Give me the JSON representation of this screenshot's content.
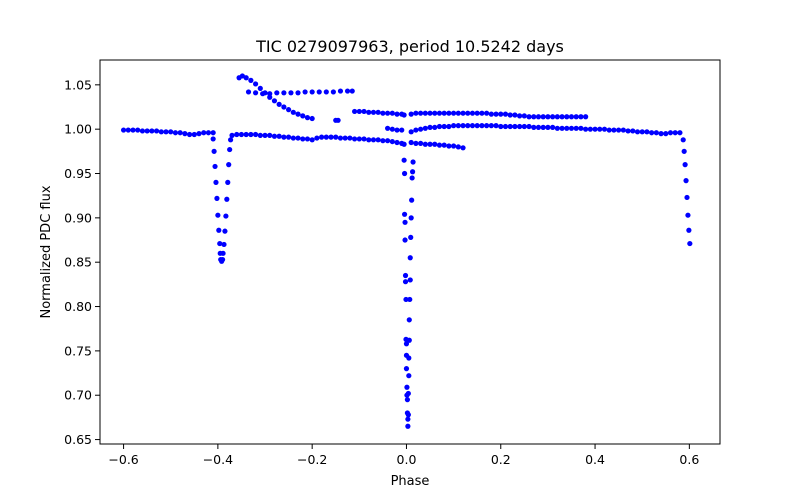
{
  "chart_data": {
    "type": "scatter",
    "title": "TIC 0279097963, period 10.5242 days",
    "xlabel": "Phase",
    "ylabel": "Normalized PDC flux",
    "xlim": [
      -0.65,
      0.665
    ],
    "ylim": [
      0.645,
      1.078
    ],
    "xticks": [
      -0.6,
      -0.4,
      -0.2,
      0.0,
      0.2,
      0.4,
      0.6
    ],
    "xtick_labels": [
      "−0.6",
      "−0.4",
      "−0.2",
      "0.0",
      "0.2",
      "0.4",
      "0.6"
    ],
    "yticks": [
      0.65,
      0.7,
      0.75,
      0.8,
      0.85,
      0.9,
      0.95,
      1.0,
      1.05
    ],
    "ytick_labels": [
      "0.65",
      "0.70",
      "0.75",
      "0.80",
      "0.85",
      "0.90",
      "0.95",
      "1.00",
      "1.05"
    ],
    "grid": false,
    "marker_color": "#0000ff",
    "series": [
      {
        "name": "main baseline left",
        "points": [
          [
            -0.6,
            0.999
          ],
          [
            -0.59,
            0.999
          ],
          [
            -0.58,
            0.999
          ],
          [
            -0.57,
            0.999
          ],
          [
            -0.56,
            0.998
          ],
          [
            -0.55,
            0.998
          ],
          [
            -0.54,
            0.998
          ],
          [
            -0.53,
            0.998
          ],
          [
            -0.52,
            0.997
          ],
          [
            -0.51,
            0.997
          ],
          [
            -0.5,
            0.997
          ],
          [
            -0.49,
            0.996
          ],
          [
            -0.48,
            0.996
          ],
          [
            -0.47,
            0.995
          ],
          [
            -0.46,
            0.994
          ],
          [
            -0.45,
            0.994
          ],
          [
            -0.44,
            0.995
          ],
          [
            -0.43,
            0.996
          ],
          [
            -0.42,
            0.996
          ],
          [
            -0.41,
            0.996
          ]
        ]
      },
      {
        "name": "primary eclipse ingress/egress (phase -0.4)",
        "points": [
          [
            -0.41,
            0.989
          ],
          [
            -0.408,
            0.975
          ],
          [
            -0.406,
            0.958
          ],
          [
            -0.404,
            0.94
          ],
          [
            -0.402,
            0.922
          ],
          [
            -0.4,
            0.903
          ],
          [
            -0.398,
            0.886
          ],
          [
            -0.396,
            0.871
          ],
          [
            -0.395,
            0.86
          ],
          [
            -0.394,
            0.853
          ],
          [
            -0.392,
            0.851
          ],
          [
            -0.39,
            0.853
          ],
          [
            -0.389,
            0.86
          ],
          [
            -0.387,
            0.87
          ],
          [
            -0.385,
            0.885
          ],
          [
            -0.383,
            0.902
          ],
          [
            -0.381,
            0.921
          ],
          [
            -0.379,
            0.94
          ],
          [
            -0.377,
            0.96
          ],
          [
            -0.375,
            0.977
          ],
          [
            -0.373,
            0.988
          ]
        ]
      },
      {
        "name": "main baseline middle",
        "points": [
          [
            -0.37,
            0.993
          ],
          [
            -0.36,
            0.994
          ],
          [
            -0.35,
            0.994
          ],
          [
            -0.34,
            0.994
          ],
          [
            -0.33,
            0.994
          ],
          [
            -0.32,
            0.994
          ],
          [
            -0.31,
            0.993
          ],
          [
            -0.3,
            0.993
          ],
          [
            -0.29,
            0.993
          ],
          [
            -0.28,
            0.992
          ],
          [
            -0.27,
            0.992
          ],
          [
            -0.26,
            0.991
          ],
          [
            -0.25,
            0.991
          ],
          [
            -0.24,
            0.99
          ],
          [
            -0.23,
            0.99
          ],
          [
            -0.22,
            0.989
          ],
          [
            -0.21,
            0.989
          ],
          [
            -0.2,
            0.988
          ],
          [
            -0.19,
            0.99
          ],
          [
            -0.18,
            0.991
          ],
          [
            -0.17,
            0.991
          ],
          [
            -0.16,
            0.991
          ],
          [
            -0.15,
            0.991
          ],
          [
            -0.14,
            0.99
          ],
          [
            -0.13,
            0.99
          ],
          [
            -0.12,
            0.99
          ],
          [
            -0.11,
            0.989
          ],
          [
            -0.1,
            0.989
          ],
          [
            -0.09,
            0.989
          ],
          [
            -0.08,
            0.988
          ],
          [
            -0.07,
            0.988
          ],
          [
            -0.06,
            0.988
          ],
          [
            -0.05,
            0.987
          ],
          [
            -0.04,
            0.987
          ],
          [
            -0.03,
            0.986
          ],
          [
            -0.02,
            0.985
          ],
          [
            -0.01,
            0.984
          ],
          [
            -0.005,
            0.983
          ]
        ]
      },
      {
        "name": "upper diagonal segment",
        "points": [
          [
            -0.355,
            1.058
          ],
          [
            -0.348,
            1.06
          ],
          [
            -0.34,
            1.058
          ],
          [
            -0.33,
            1.055
          ],
          [
            -0.32,
            1.051
          ],
          [
            -0.31,
            1.046
          ],
          [
            -0.3,
            1.041
          ],
          [
            -0.29,
            1.036
          ],
          [
            -0.28,
            1.032
          ],
          [
            -0.27,
            1.028
          ],
          [
            -0.26,
            1.025
          ],
          [
            -0.25,
            1.022
          ],
          [
            -0.24,
            1.019
          ],
          [
            -0.23,
            1.017
          ],
          [
            -0.22,
            1.015
          ],
          [
            -0.21,
            1.013
          ],
          [
            -0.2,
            1.012
          ]
        ]
      },
      {
        "name": "upper flat segment",
        "points": [
          [
            -0.335,
            1.042
          ],
          [
            -0.32,
            1.041
          ],
          [
            -0.305,
            1.04
          ],
          [
            -0.29,
            1.04
          ],
          [
            -0.275,
            1.041
          ],
          [
            -0.26,
            1.041
          ],
          [
            -0.245,
            1.041
          ],
          [
            -0.23,
            1.041
          ],
          [
            -0.215,
            1.042
          ],
          [
            -0.2,
            1.042
          ],
          [
            -0.185,
            1.042
          ],
          [
            -0.17,
            1.042
          ],
          [
            -0.155,
            1.042
          ],
          [
            -0.14,
            1.043
          ],
          [
            -0.125,
            1.043
          ],
          [
            -0.115,
            1.043
          ]
        ]
      },
      {
        "name": "stray points",
        "points": [
          [
            -0.15,
            1.01
          ],
          [
            -0.145,
            1.01
          ]
        ]
      },
      {
        "name": "upper segment near phase zero",
        "points": [
          [
            -0.11,
            1.02
          ],
          [
            -0.1,
            1.02
          ],
          [
            -0.09,
            1.02
          ],
          [
            -0.08,
            1.019
          ],
          [
            -0.07,
            1.019
          ],
          [
            -0.06,
            1.019
          ],
          [
            -0.05,
            1.018
          ],
          [
            -0.04,
            1.018
          ],
          [
            -0.03,
            1.018
          ],
          [
            -0.02,
            1.017
          ],
          [
            -0.01,
            1.017
          ],
          [
            -0.005,
            1.016
          ]
        ]
      },
      {
        "name": "short segment near phase zero",
        "points": [
          [
            -0.04,
            1.001
          ],
          [
            -0.03,
            1.0
          ],
          [
            -0.02,
            0.999
          ],
          [
            -0.01,
            0.999
          ]
        ]
      },
      {
        "name": "secondary eclipse (phase 0)",
        "points": [
          [
            -0.005,
            0.965
          ],
          [
            -0.004,
            0.95
          ],
          [
            -0.004,
            0.904
          ],
          [
            -0.003,
            0.895
          ],
          [
            -0.003,
            0.875
          ],
          [
            -0.002,
            0.835
          ],
          [
            -0.002,
            0.828
          ],
          [
            -0.001,
            0.808
          ],
          [
            -0.001,
            0.763
          ],
          [
            0.0,
            0.758
          ],
          [
            0.0,
            0.745
          ],
          [
            0.0,
            0.73
          ],
          [
            0.001,
            0.709
          ],
          [
            0.001,
            0.7
          ],
          [
            0.002,
            0.695
          ],
          [
            0.002,
            0.68
          ],
          [
            0.003,
            0.673
          ],
          [
            0.003,
            0.665
          ],
          [
            0.004,
            0.678
          ],
          [
            0.004,
            0.702
          ],
          [
            0.005,
            0.722
          ],
          [
            0.005,
            0.742
          ],
          [
            0.006,
            0.762
          ],
          [
            0.006,
            0.785
          ],
          [
            0.007,
            0.808
          ],
          [
            0.008,
            0.83
          ],
          [
            0.008,
            0.855
          ],
          [
            0.009,
            0.878
          ],
          [
            0.01,
            0.9
          ],
          [
            0.011,
            0.92
          ],
          [
            0.012,
            0.945
          ],
          [
            0.013,
            0.952
          ],
          [
            0.014,
            0.963
          ]
        ]
      },
      {
        "name": "post-eclipse lower short segment",
        "points": [
          [
            0.01,
            0.985
          ],
          [
            0.02,
            0.984
          ],
          [
            0.03,
            0.984
          ],
          [
            0.04,
            0.983
          ],
          [
            0.05,
            0.983
          ],
          [
            0.06,
            0.983
          ],
          [
            0.07,
            0.982
          ],
          [
            0.08,
            0.982
          ],
          [
            0.09,
            0.981
          ],
          [
            0.1,
            0.981
          ],
          [
            0.11,
            0.98
          ],
          [
            0.12,
            0.979
          ]
        ]
      },
      {
        "name": "main baseline right",
        "points": [
          [
            0.01,
            0.997
          ],
          [
            0.02,
            0.999
          ],
          [
            0.03,
            1.0
          ],
          [
            0.04,
            1.001
          ],
          [
            0.05,
            1.002
          ],
          [
            0.06,
            1.002
          ],
          [
            0.07,
            1.003
          ],
          [
            0.08,
            1.003
          ],
          [
            0.09,
            1.003
          ],
          [
            0.1,
            1.004
          ],
          [
            0.11,
            1.004
          ],
          [
            0.12,
            1.004
          ],
          [
            0.13,
            1.004
          ],
          [
            0.14,
            1.004
          ],
          [
            0.15,
            1.004
          ],
          [
            0.16,
            1.004
          ],
          [
            0.17,
            1.004
          ],
          [
            0.18,
            1.004
          ],
          [
            0.19,
            1.004
          ],
          [
            0.2,
            1.003
          ],
          [
            0.21,
            1.003
          ],
          [
            0.22,
            1.003
          ],
          [
            0.23,
            1.003
          ],
          [
            0.24,
            1.003
          ],
          [
            0.25,
            1.003
          ],
          [
            0.26,
            1.003
          ],
          [
            0.27,
            1.002
          ],
          [
            0.28,
            1.002
          ],
          [
            0.29,
            1.002
          ],
          [
            0.3,
            1.002
          ],
          [
            0.31,
            1.002
          ],
          [
            0.32,
            1.001
          ],
          [
            0.33,
            1.001
          ],
          [
            0.34,
            1.001
          ],
          [
            0.35,
            1.001
          ],
          [
            0.36,
            1.001
          ],
          [
            0.37,
            1.001
          ],
          [
            0.38,
            1.0
          ],
          [
            0.39,
            1.0
          ],
          [
            0.4,
            1.0
          ],
          [
            0.41,
            1.0
          ],
          [
            0.42,
            1.0
          ],
          [
            0.43,
            0.999
          ],
          [
            0.44,
            0.999
          ],
          [
            0.45,
            0.999
          ],
          [
            0.46,
            0.999
          ],
          [
            0.47,
            0.998
          ],
          [
            0.48,
            0.998
          ],
          [
            0.49,
            0.997
          ],
          [
            0.5,
            0.997
          ],
          [
            0.51,
            0.997
          ],
          [
            0.52,
            0.996
          ],
          [
            0.53,
            0.996
          ],
          [
            0.54,
            0.995
          ],
          [
            0.55,
            0.995
          ],
          [
            0.56,
            0.996
          ],
          [
            0.57,
            0.996
          ],
          [
            0.58,
            0.996
          ]
        ]
      },
      {
        "name": "upper segment right",
        "points": [
          [
            0.01,
            1.017
          ],
          [
            0.02,
            1.018
          ],
          [
            0.03,
            1.018
          ],
          [
            0.04,
            1.018
          ],
          [
            0.05,
            1.018
          ],
          [
            0.06,
            1.018
          ],
          [
            0.07,
            1.018
          ],
          [
            0.08,
            1.018
          ],
          [
            0.09,
            1.018
          ],
          [
            0.1,
            1.018
          ],
          [
            0.11,
            1.018
          ],
          [
            0.12,
            1.018
          ],
          [
            0.13,
            1.018
          ],
          [
            0.14,
            1.018
          ],
          [
            0.15,
            1.018
          ],
          [
            0.16,
            1.018
          ],
          [
            0.17,
            1.018
          ],
          [
            0.18,
            1.017
          ],
          [
            0.19,
            1.017
          ],
          [
            0.2,
            1.017
          ],
          [
            0.21,
            1.017
          ],
          [
            0.22,
            1.016
          ],
          [
            0.23,
            1.016
          ],
          [
            0.24,
            1.015
          ],
          [
            0.25,
            1.015
          ],
          [
            0.26,
            1.014
          ],
          [
            0.27,
            1.014
          ],
          [
            0.28,
            1.014
          ],
          [
            0.29,
            1.014
          ],
          [
            0.3,
            1.014
          ],
          [
            0.31,
            1.014
          ],
          [
            0.32,
            1.014
          ],
          [
            0.33,
            1.014
          ],
          [
            0.34,
            1.014
          ],
          [
            0.35,
            1.014
          ],
          [
            0.36,
            1.014
          ],
          [
            0.37,
            1.014
          ],
          [
            0.38,
            1.014
          ]
        ]
      },
      {
        "name": "primary eclipse ingress (phase 0.6)",
        "points": [
          [
            0.587,
            0.988
          ],
          [
            0.589,
            0.975
          ],
          [
            0.591,
            0.96
          ],
          [
            0.593,
            0.942
          ],
          [
            0.595,
            0.923
          ],
          [
            0.597,
            0.903
          ],
          [
            0.599,
            0.886
          ],
          [
            0.601,
            0.871
          ]
        ]
      }
    ]
  }
}
